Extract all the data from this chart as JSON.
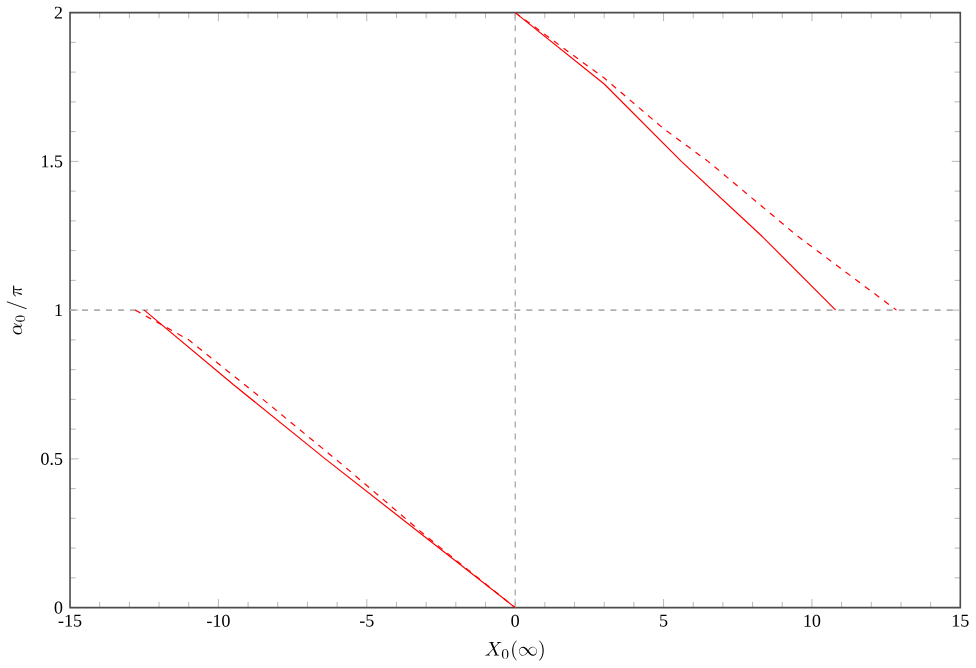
{
  "chart_data": {
    "type": "line",
    "xlabel": "X_0(\\infty)",
    "ylabel": "\\alpha_0\\,/\\,\\pi",
    "xlim": [
      -15,
      15
    ],
    "ylim": [
      0,
      2
    ],
    "xticks": [
      -15,
      -10,
      -5,
      0,
      5,
      10,
      15
    ],
    "yticks": [
      0,
      0.5,
      1,
      1.5,
      2
    ],
    "grid": false,
    "marker": "none",
    "series": [
      {
        "color": "#ff0000",
        "line_style": "solid",
        "x": [
          -12.5,
          -9.5,
          -6.4,
          -3.2,
          0,
          null,
          0,
          3,
          5.6,
          8.3,
          10.8
        ],
        "values": [
          1,
          0.75,
          0.5,
          0.25,
          0,
          null,
          2,
          1.76,
          1.5,
          1.25,
          1
        ]
      },
      {
        "color": "#ff0000",
        "line_style": "dashed",
        "x": [
          -12.8,
          -11,
          -8.5,
          -5.7,
          -3,
          0,
          null,
          0,
          3,
          5,
          6.5,
          9.5,
          12.85
        ],
        "values": [
          1,
          0.9,
          0.7,
          0.47,
          0.24,
          0,
          null,
          2,
          1.78,
          1.61,
          1.5,
          1.25,
          1
        ]
      }
    ],
    "ref_lines": [
      {
        "axis": "y",
        "value": 1,
        "color": "#b0b0b0",
        "line_style": "dashed"
      },
      {
        "axis": "x",
        "value": 0,
        "color": "#b0b0b0",
        "line_style": "dashed"
      }
    ]
  }
}
